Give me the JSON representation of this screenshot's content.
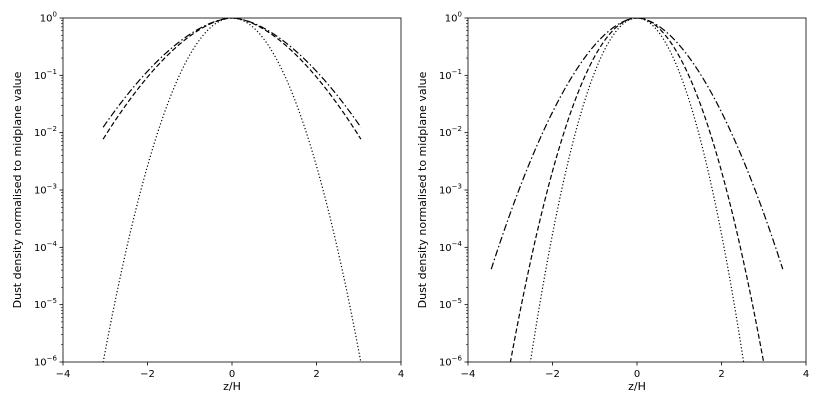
{
  "chart_data": [
    {
      "type": "line",
      "panel": "left",
      "xlabel": "z/H",
      "ylabel": "Dust density normalised to midplane value",
      "xlim": [
        -4,
        4
      ],
      "ylim": [
        1e-06,
        1
      ],
      "yscale": "log",
      "x_ticks": [
        -4,
        -2,
        0,
        2,
        4
      ],
      "y_ticks": [
        1e-06,
        1e-05,
        0.0001,
        0.001,
        0.01,
        0.1,
        1
      ],
      "grid": false,
      "legend": "none",
      "series": [
        {
          "style": "dotted",
          "color": "#000000",
          "function": "exp(-z^2/(2 s^2))",
          "sigma": 0.58,
          "z_range": [
            -3.05,
            3.05
          ]
        },
        {
          "style": "dashed",
          "color": "#000000",
          "function": "exp(-|z|^p / (2 s^p))",
          "sigma": 0.8,
          "p": 1.7,
          "z_range": [
            -3.05,
            3.05
          ]
        },
        {
          "style": "dashdot",
          "color": "#000000",
          "function": "exp(-|z|^p / (2 s^p))",
          "sigma": 0.85,
          "p": 1.7,
          "z_range": [
            -3.05,
            3.05
          ]
        }
      ]
    },
    {
      "type": "line",
      "panel": "right",
      "xlabel": "z/H",
      "ylabel": "Dust density normalised to midplane value",
      "xlim": [
        -4,
        4
      ],
      "ylim": [
        1e-06,
        1
      ],
      "yscale": "log",
      "x_ticks": [
        -4,
        -2,
        0,
        2,
        4
      ],
      "y_ticks": [
        1e-06,
        1e-05,
        0.0001,
        0.001,
        0.01,
        0.1,
        1
      ],
      "grid": false,
      "legend": "none",
      "series": [
        {
          "style": "dotted",
          "color": "#000000",
          "function": "exp(-z^2/(2 s^2))",
          "sigma": 0.48,
          "z_range": [
            -2.55,
            2.55
          ]
        },
        {
          "style": "dashed",
          "color": "#000000",
          "function": "exp(-z^2/(2 s^2))",
          "sigma": 0.57,
          "z_range": [
            -3.0,
            3.0
          ]
        },
        {
          "style": "dashdot",
          "color": "#000000",
          "function": "exp(-|z|^p / (2 s^p))",
          "sigma": 0.65,
          "p": 1.8,
          "z_range": [
            -3.45,
            3.45
          ]
        }
      ]
    }
  ]
}
